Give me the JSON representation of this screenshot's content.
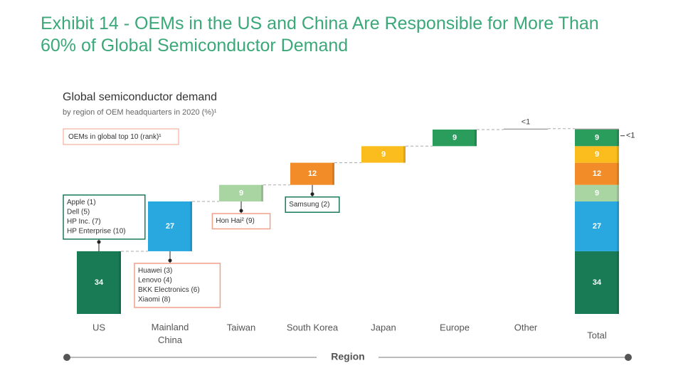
{
  "header": {
    "title": "Exhibit 14 - OEMs in the US and China Are Responsible for More Than 60% of Global Semiconductor Demand"
  },
  "chart_data": {
    "type": "waterfall",
    "title": "Global semiconductor demand",
    "subtitle": "by region of OEM headquarters in 2020 (%)¹",
    "legend_note": "OEMs in global top 10 (rank)¹",
    "x_label": "Region",
    "categories": [
      "US",
      "Mainland China",
      "Taiwan",
      "South Korea",
      "Japan",
      "Europe",
      "Other"
    ],
    "values": [
      34,
      27,
      9,
      12,
      9,
      9,
      0.5
    ],
    "value_labels": [
      "34",
      "27",
      "9",
      "12",
      "9",
      "9",
      "<1"
    ],
    "colors": [
      "#197a56",
      "#29a8e0",
      "#a8d5a2",
      "#f28c28",
      "#fbbd1e",
      "#2a9d5c",
      "#9a9a9a"
    ],
    "total_label": "Total",
    "ylim": [
      0,
      100
    ],
    "annotations": [
      {
        "category": "US",
        "color": "#197a56",
        "lines": [
          "Apple (1)",
          "Dell (5)",
          "HP Inc. (7)",
          "HP Enterprise (10)"
        ]
      },
      {
        "category": "Mainland China",
        "color": "#f0a08a",
        "lines": [
          "Huawei (3)",
          "Lenovo (4)",
          "BKK Electronics (6)",
          "Xiaomi (8)"
        ]
      },
      {
        "category": "Taiwan",
        "color": "#f0a08a",
        "lines": [
          "Hon Hai² (9)"
        ]
      },
      {
        "category": "South Korea",
        "color": "#197a56",
        "lines": [
          "Samsung (2)"
        ]
      }
    ]
  }
}
